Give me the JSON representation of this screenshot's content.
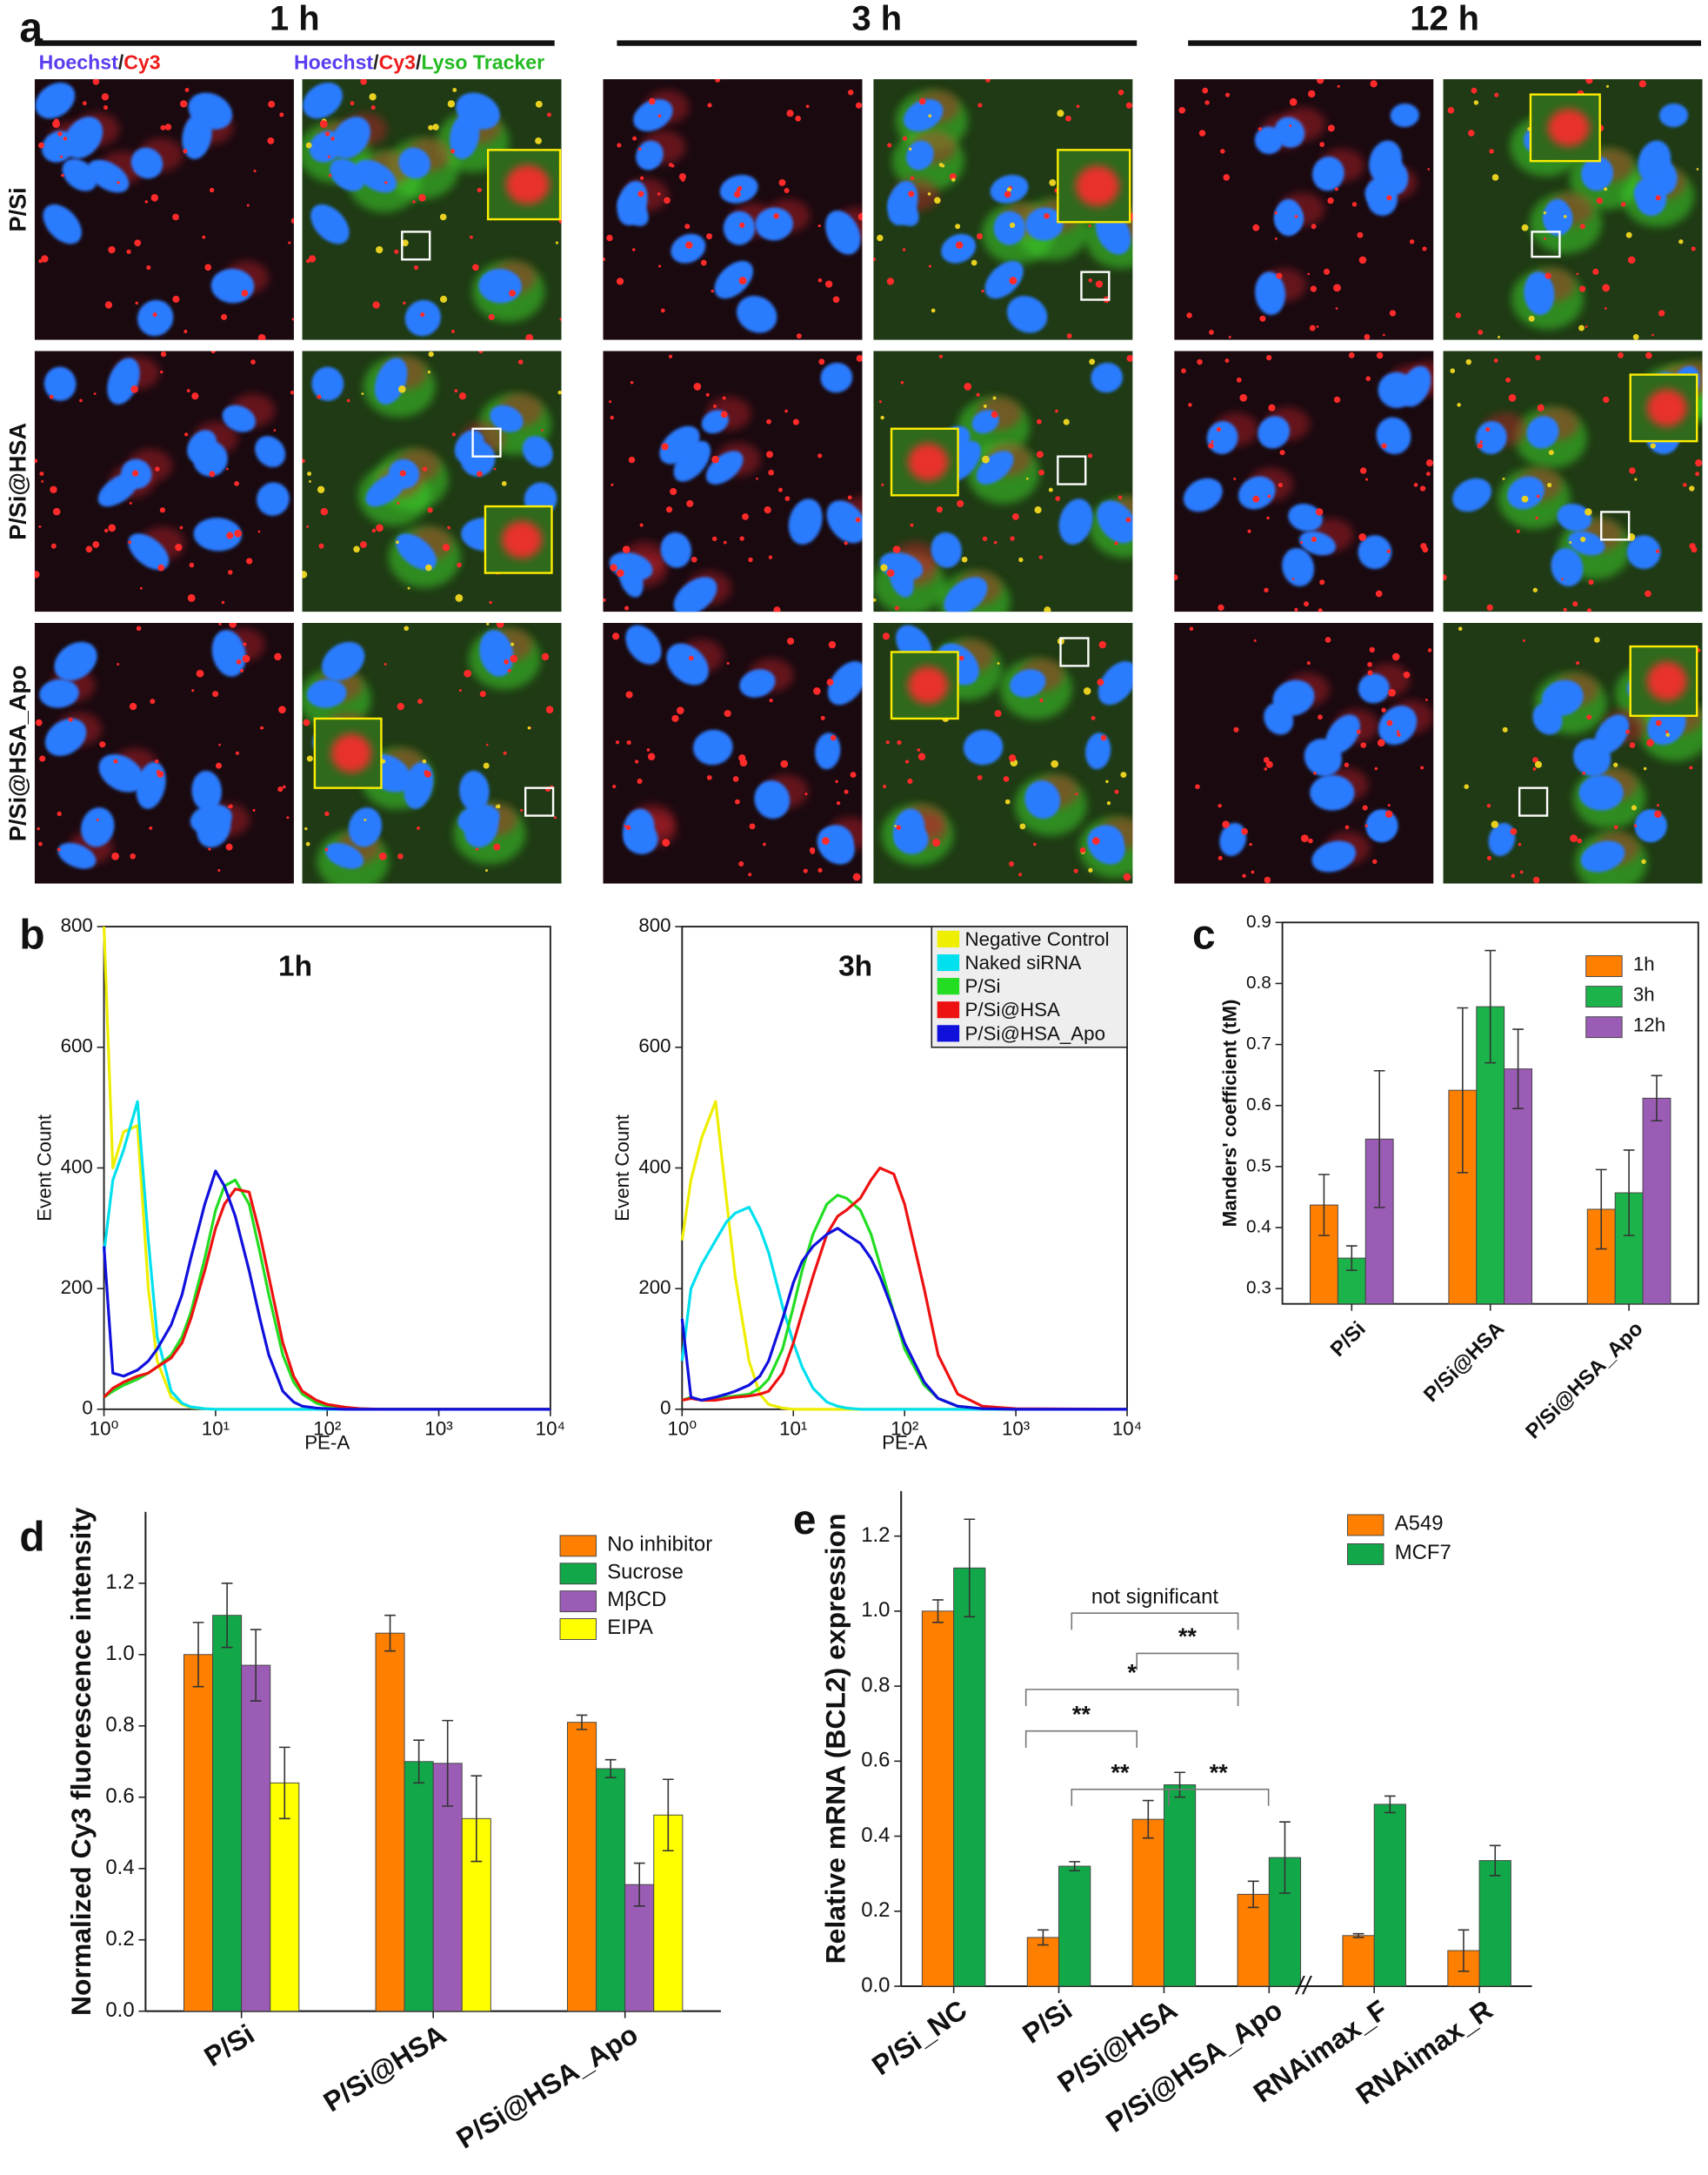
{
  "panel_labels": [
    "a",
    "b",
    "c",
    "d",
    "e"
  ],
  "microscopy": {
    "timepoints": [
      "1 h",
      "3 h",
      "12 h"
    ],
    "channels": [
      [
        {
          "text": "Hoechst",
          "color": "#5a3cf0"
        },
        {
          "text": "/",
          "color": "#222222"
        },
        {
          "text": "Cy3",
          "color": "#ee1c1c"
        }
      ],
      [
        {
          "text": "Hoechst",
          "color": "#5a3cf0"
        },
        {
          "text": "/",
          "color": "#222222"
        },
        {
          "text": "Cy3",
          "color": "#ee1c1c"
        },
        {
          "text": "/",
          "color": "#222222"
        },
        {
          "text": "Lyso Tracker",
          "color": "#22bb22"
        }
      ]
    ],
    "rows": [
      "P/Si",
      "P/Si@HSA",
      "P/Si@HSA_Apo"
    ]
  },
  "chart_data": [
    {
      "type": "line",
      "title": "1h",
      "xlabel": "PE-A",
      "ylabel": "Event Count",
      "xscale": "log",
      "x": [
        1,
        1.2,
        1.5,
        2,
        2.5,
        3,
        4,
        5,
        6,
        8,
        10,
        12,
        15,
        20,
        25,
        30,
        40,
        50,
        60,
        80,
        100,
        150,
        200,
        300,
        500,
        1000,
        10000
      ],
      "xlim": [
        1,
        10000
      ],
      "xticks": [
        {
          "value": 1,
          "label": "10⁰"
        },
        {
          "value": 10,
          "label": "10¹"
        },
        {
          "value": 100,
          "label": "10²"
        },
        {
          "value": 1000,
          "label": "10³"
        },
        {
          "value": 10000,
          "label": "10⁴"
        }
      ],
      "ylim": [
        0,
        800
      ],
      "yticks": [
        0,
        200,
        400,
        600,
        800
      ],
      "series": [
        {
          "color": "#eeee00",
          "values": [
            800,
            400,
            460,
            470,
            200,
            80,
            20,
            8,
            3,
            1,
            0,
            0,
            0,
            0,
            0,
            0,
            0,
            0,
            0,
            0,
            0,
            0,
            0,
            0,
            0,
            0,
            0
          ]
        },
        {
          "color": "#00e0ee",
          "values": [
            260,
            380,
            430,
            510,
            280,
            120,
            30,
            10,
            4,
            1,
            0,
            0,
            0,
            0,
            0,
            0,
            0,
            0,
            0,
            0,
            0,
            0,
            0,
            0,
            0,
            0,
            0
          ]
        },
        {
          "color": "#22dd22",
          "values": [
            20,
            30,
            40,
            50,
            60,
            70,
            90,
            120,
            160,
            250,
            330,
            370,
            380,
            340,
            260,
            190,
            90,
            45,
            25,
            10,
            5,
            2,
            1,
            0,
            0,
            0,
            0
          ]
        },
        {
          "color": "#ee1111",
          "values": [
            20,
            35,
            45,
            55,
            60,
            70,
            85,
            110,
            150,
            230,
            300,
            340,
            365,
            360,
            290,
            220,
            110,
            55,
            30,
            15,
            8,
            3,
            1,
            0,
            0,
            0,
            0
          ]
        },
        {
          "color": "#1010dd",
          "values": [
            270,
            60,
            55,
            65,
            80,
            100,
            140,
            190,
            250,
            340,
            395,
            370,
            320,
            230,
            150,
            90,
            30,
            12,
            5,
            2,
            1,
            0,
            0,
            0,
            0,
            0,
            0
          ]
        }
      ]
    },
    {
      "type": "line",
      "title": "3h",
      "xlabel": "PE-A",
      "ylabel": "Event Count",
      "xscale": "log",
      "legend": "upper right",
      "x": [
        1,
        1.2,
        1.5,
        2,
        2.5,
        3,
        4,
        5,
        6,
        8,
        10,
        12,
        15,
        20,
        25,
        30,
        40,
        50,
        60,
        80,
        100,
        150,
        200,
        300,
        500,
        1000,
        10000
      ],
      "xlim": [
        1,
        10000
      ],
      "xticks": [
        {
          "value": 1,
          "label": "10⁰"
        },
        {
          "value": 10,
          "label": "10¹"
        },
        {
          "value": 100,
          "label": "10²"
        },
        {
          "value": 1000,
          "label": "10³"
        },
        {
          "value": 10000,
          "label": "10⁴"
        }
      ],
      "ylim": [
        0,
        800
      ],
      "yticks": [
        0,
        200,
        400,
        600,
        800
      ],
      "series": [
        {
          "name": "Negative Control",
          "color": "#eeee00",
          "values": [
            280,
            380,
            450,
            510,
            350,
            220,
            80,
            25,
            8,
            2,
            0,
            0,
            0,
            0,
            0,
            0,
            0,
            0,
            0,
            0,
            0,
            0,
            0,
            0,
            0,
            0,
            0
          ]
        },
        {
          "name": "Naked siRNA",
          "color": "#00e0ee",
          "values": [
            80,
            200,
            240,
            280,
            310,
            325,
            335,
            300,
            260,
            170,
            110,
            70,
            35,
            12,
            5,
            2,
            0,
            0,
            0,
            0,
            0,
            0,
            0,
            0,
            0,
            0,
            0
          ]
        },
        {
          "name": "P/Si",
          "color": "#22dd22",
          "values": [
            15,
            20,
            15,
            18,
            20,
            22,
            25,
            35,
            50,
            100,
            170,
            230,
            290,
            340,
            355,
            350,
            330,
            290,
            240,
            160,
            100,
            40,
            18,
            5,
            1,
            0,
            0
          ]
        },
        {
          "name": "P/Si@HSA",
          "color": "#ee1111",
          "values": [
            15,
            18,
            15,
            15,
            18,
            20,
            22,
            25,
            30,
            60,
            110,
            160,
            220,
            290,
            320,
            330,
            350,
            380,
            400,
            390,
            340,
            200,
            90,
            25,
            5,
            1,
            0
          ]
        },
        {
          "name": "P/Si@HSA_Apo",
          "color": "#1010dd",
          "values": [
            150,
            20,
            15,
            20,
            25,
            30,
            40,
            55,
            80,
            150,
            210,
            245,
            270,
            290,
            300,
            290,
            275,
            250,
            220,
            160,
            110,
            45,
            18,
            5,
            1,
            0,
            0
          ]
        }
      ]
    },
    {
      "type": "bar",
      "ylabel": "Manders' coefficient (tM)",
      "legend": "upper right",
      "categories": [
        "P/Si",
        "P/Si@HSA",
        "P/Si@HSA_Apo"
      ],
      "ylim": [
        0.275,
        0.9
      ],
      "yticks": [
        0.3,
        0.4,
        0.5,
        0.6,
        0.7,
        0.8,
        0.9
      ],
      "series": [
        {
          "name": "1h",
          "color": "#ff8000",
          "values": [
            0.437,
            0.625,
            0.43
          ],
          "errors": [
            0.05,
            0.135,
            0.065
          ]
        },
        {
          "name": "3h",
          "color": "#1db34b",
          "values": [
            0.35,
            0.762,
            0.457
          ],
          "errors": [
            0.02,
            0.092,
            0.07
          ]
        },
        {
          "name": "12h",
          "color": "#9a5cb4",
          "values": [
            0.545,
            0.66,
            0.612
          ],
          "errors": [
            0.112,
            0.065,
            0.037
          ]
        }
      ]
    },
    {
      "type": "bar",
      "ylabel": "Normalized Cy3 fluorescence intensity",
      "legend": "upper right",
      "categories": [
        "P/Si",
        "P/Si@HSA",
        "P/Si@HSA_Apo"
      ],
      "ylim": [
        0,
        1.4
      ],
      "yticks": [
        {
          "value": 0,
          "label": "0.0"
        },
        0.2,
        0.4,
        0.6,
        0.8,
        {
          "value": 1,
          "label": "1.0"
        },
        1.2
      ],
      "series": [
        {
          "name": "No inhibitor",
          "color": "#ff8000",
          "values": [
            1.0,
            1.06,
            0.81
          ],
          "errors": [
            0.09,
            0.05,
            0.02
          ]
        },
        {
          "name": "Sucrose",
          "color": "#12a84a",
          "values": [
            1.11,
            0.7,
            0.68
          ],
          "errors": [
            0.09,
            0.06,
            0.025
          ]
        },
        {
          "name": "MβCD",
          "color": "#9a5cb4",
          "values": [
            0.97,
            0.695,
            0.355
          ],
          "errors": [
            0.1,
            0.12,
            0.06
          ]
        },
        {
          "name": "EIPA",
          "color": "#ffff00",
          "values": [
            0.64,
            0.54,
            0.55
          ],
          "errors": [
            0.1,
            0.12,
            0.1
          ]
        }
      ]
    },
    {
      "type": "bar",
      "ylabel": "Relative mRNA (BCL2) expression",
      "legend": "upper center",
      "categories": [
        "P/Si_NC",
        "P/Si",
        "P/Si@HSA",
        "P/Si@HSA_Apo",
        "RNAimax_F",
        "RNAimax_R"
      ],
      "ylim": [
        0,
        1.32
      ],
      "yticks": [
        {
          "value": 0,
          "label": "0.0"
        },
        0.2,
        0.4,
        0.6,
        0.8,
        {
          "value": 1,
          "label": "1.0"
        },
        1.2
      ],
      "axis_break": "//",
      "annotations": [
        {
          "text": "not significant",
          "color": "#222222"
        },
        {
          "text": "**",
          "color": "#ff7f00"
        },
        {
          "text": "*",
          "color": "#ff7f00"
        },
        {
          "text": "**",
          "color": "#ff7f00"
        },
        {
          "text": "**",
          "color": "#0a7a0a"
        },
        {
          "text": "**",
          "color": "#0a7a0a"
        }
      ],
      "series": [
        {
          "name": "A549",
          "color": "#ff8000",
          "values": [
            1.0,
            0.13,
            0.445,
            0.245,
            0.135,
            0.095
          ],
          "errors": [
            0.03,
            0.02,
            0.05,
            0.035,
            0.005,
            0.055
          ]
        },
        {
          "name": "MCF7",
          "color": "#12a84a",
          "values": [
            1.115,
            0.32,
            0.537,
            0.343,
            0.485,
            0.335
          ],
          "errors": [
            0.13,
            0.012,
            0.033,
            0.095,
            0.022,
            0.04
          ]
        }
      ]
    }
  ]
}
